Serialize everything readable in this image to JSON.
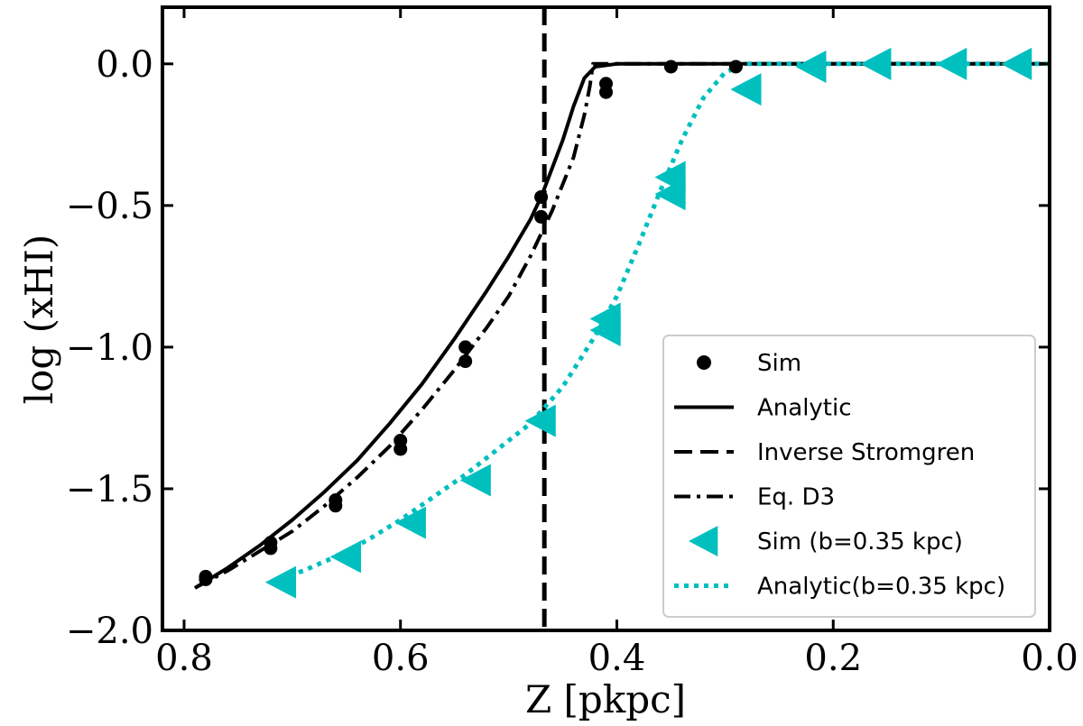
{
  "chart_data": {
    "type": "line",
    "title": "",
    "xlabel": "Z [pkpc]",
    "ylabel": "log (xHI)",
    "xlim": [
      0.82,
      0.0
    ],
    "ylim": [
      -2.0,
      0.2
    ],
    "x_ticks": [
      0.8,
      0.6,
      0.4,
      0.2,
      0.0
    ],
    "x_tick_labels": [
      "0.8",
      "0.6",
      "0.4",
      "0.2",
      "0.0"
    ],
    "y_ticks": [
      0.0,
      -0.5,
      -1.0,
      -1.5,
      -2.0
    ],
    "y_tick_labels": [
      "0.0",
      "−0.5",
      "−1.0",
      "−1.5",
      "−2.0"
    ],
    "grid": false,
    "legend_position": "lower-right",
    "colors": {
      "black": "#000000",
      "cyan": "#00bfbf"
    },
    "series": [
      {
        "name": "Sim",
        "kind": "scatter",
        "marker": "circle",
        "color": "#000000",
        "points": [
          [
            0.78,
            -1.81
          ],
          [
            0.78,
            -1.82
          ],
          [
            0.72,
            -1.69
          ],
          [
            0.72,
            -1.71
          ],
          [
            0.66,
            -1.54
          ],
          [
            0.66,
            -1.56
          ],
          [
            0.6,
            -1.33
          ],
          [
            0.6,
            -1.36
          ],
          [
            0.54,
            -1.0
          ],
          [
            0.54,
            -1.05
          ],
          [
            0.47,
            -0.47
          ],
          [
            0.47,
            -0.54
          ],
          [
            0.41,
            -0.07
          ],
          [
            0.41,
            -0.1
          ],
          [
            0.35,
            -0.01
          ],
          [
            0.29,
            -0.01
          ]
        ]
      },
      {
        "name": "Analytic",
        "kind": "line",
        "style": "solid",
        "color": "#000000",
        "points": [
          [
            0.79,
            -1.85
          ],
          [
            0.76,
            -1.78
          ],
          [
            0.73,
            -1.7
          ],
          [
            0.7,
            -1.61
          ],
          [
            0.67,
            -1.51
          ],
          [
            0.64,
            -1.4
          ],
          [
            0.61,
            -1.27
          ],
          [
            0.58,
            -1.13
          ],
          [
            0.55,
            -0.97
          ],
          [
            0.52,
            -0.8
          ],
          [
            0.5,
            -0.68
          ],
          [
            0.48,
            -0.55
          ],
          [
            0.47,
            -0.47
          ],
          [
            0.46,
            -0.37
          ],
          [
            0.45,
            -0.27
          ],
          [
            0.44,
            -0.15
          ],
          [
            0.43,
            -0.05
          ],
          [
            0.42,
            -0.01
          ],
          [
            0.4,
            0.0
          ],
          [
            0.3,
            0.0
          ],
          [
            0.2,
            0.0
          ],
          [
            0.1,
            0.0
          ],
          [
            0.0,
            0.0
          ]
        ]
      },
      {
        "name": "Inverse Stromgren",
        "kind": "vline",
        "style": "dashed",
        "color": "#000000",
        "x": 0.467
      },
      {
        "name": "Eq. D3",
        "kind": "line",
        "style": "dashdot",
        "color": "#000000",
        "points": [
          [
            0.79,
            -1.85
          ],
          [
            0.76,
            -1.79
          ],
          [
            0.73,
            -1.72
          ],
          [
            0.7,
            -1.65
          ],
          [
            0.67,
            -1.56
          ],
          [
            0.64,
            -1.46
          ],
          [
            0.61,
            -1.35
          ],
          [
            0.58,
            -1.22
          ],
          [
            0.55,
            -1.08
          ],
          [
            0.52,
            -0.93
          ],
          [
            0.5,
            -0.82
          ],
          [
            0.48,
            -0.68
          ],
          [
            0.46,
            -0.52
          ],
          [
            0.44,
            -0.33
          ],
          [
            0.43,
            -0.18
          ],
          [
            0.425,
            -0.08
          ],
          [
            0.422,
            0.0
          ],
          [
            0.42,
            0.0
          ],
          [
            0.3,
            0.0
          ],
          [
            0.2,
            0.0
          ],
          [
            0.1,
            0.0
          ],
          [
            0.0,
            0.0
          ]
        ]
      },
      {
        "name": "Sim (b=0.35 kpc)",
        "kind": "scatter",
        "marker": "triangle-left",
        "color": "#00bfbf",
        "points": [
          [
            0.71,
            -1.83
          ],
          [
            0.65,
            -1.74
          ],
          [
            0.59,
            -1.62
          ],
          [
            0.53,
            -1.47
          ],
          [
            0.47,
            -1.26
          ],
          [
            0.41,
            -0.9
          ],
          [
            0.41,
            -0.94
          ],
          [
            0.35,
            -0.4
          ],
          [
            0.35,
            -0.46
          ],
          [
            0.28,
            -0.09
          ],
          [
            0.22,
            -0.01
          ],
          [
            0.16,
            0.0
          ],
          [
            0.09,
            0.0
          ],
          [
            0.03,
            0.0
          ]
        ]
      },
      {
        "name": "Analytic(b=0.35 kpc)",
        "kind": "line",
        "style": "dotted",
        "color": "#00bfbf",
        "points": [
          [
            0.72,
            -1.83
          ],
          [
            0.69,
            -1.79
          ],
          [
            0.66,
            -1.74
          ],
          [
            0.63,
            -1.68
          ],
          [
            0.6,
            -1.61
          ],
          [
            0.57,
            -1.53
          ],
          [
            0.54,
            -1.45
          ],
          [
            0.51,
            -1.36
          ],
          [
            0.48,
            -1.27
          ],
          [
            0.45,
            -1.14
          ],
          [
            0.42,
            -0.96
          ],
          [
            0.4,
            -0.82
          ],
          [
            0.38,
            -0.64
          ],
          [
            0.36,
            -0.45
          ],
          [
            0.34,
            -0.27
          ],
          [
            0.32,
            -0.12
          ],
          [
            0.3,
            -0.03
          ],
          [
            0.28,
            0.0
          ],
          [
            0.2,
            0.0
          ],
          [
            0.1,
            0.0
          ],
          [
            0.0,
            0.0
          ]
        ]
      }
    ]
  }
}
